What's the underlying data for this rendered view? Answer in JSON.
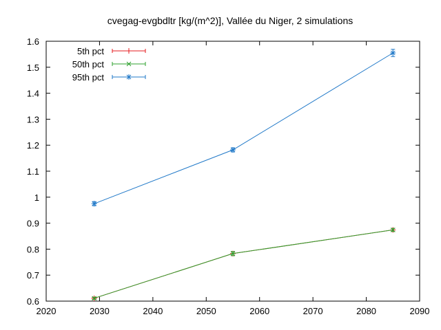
{
  "chart_data": {
    "type": "line",
    "title": "cvegag-evgbdltr [kg/(m^2)], Vallée du Niger, 2 simulations",
    "xlabel": "",
    "ylabel": "",
    "xlim": [
      2020,
      2090
    ],
    "ylim": [
      0.6,
      1.6
    ],
    "xticks": [
      2020,
      2030,
      2040,
      2050,
      2060,
      2070,
      2080,
      2090
    ],
    "yticks": [
      0.6,
      0.7,
      0.8,
      0.9,
      1,
      1.1,
      1.2,
      1.3,
      1.4,
      1.5,
      1.6
    ],
    "xtick_labels": [
      "2020",
      "2030",
      "2040",
      "2050",
      "2060",
      "2070",
      "2080",
      "2090"
    ],
    "ytick_labels": [
      "0.6",
      "0.7",
      "0.8",
      "0.9",
      "1",
      "1.1",
      "1.2",
      "1.3",
      "1.4",
      "1.5",
      "1.6"
    ],
    "grid": false,
    "legend_position": "top-left",
    "x": [
      2029,
      2055,
      2085
    ],
    "series": [
      {
        "name": "5th pct",
        "color": "#e41a1c",
        "marker": "plus",
        "values": [
          0.611,
          0.783,
          0.874
        ],
        "errors": [
          0.004,
          0.008,
          0.006
        ]
      },
      {
        "name": "50th pct",
        "color": "#2ca02c",
        "marker": "cross",
        "values": [
          0.611,
          0.783,
          0.874
        ],
        "errors": [
          0.004,
          0.008,
          0.006
        ]
      },
      {
        "name": "95th pct",
        "color": "#1f78c8",
        "marker": "star",
        "values": [
          0.975,
          1.182,
          1.555
        ],
        "errors": [
          0.008,
          0.008,
          0.014
        ]
      }
    ]
  }
}
